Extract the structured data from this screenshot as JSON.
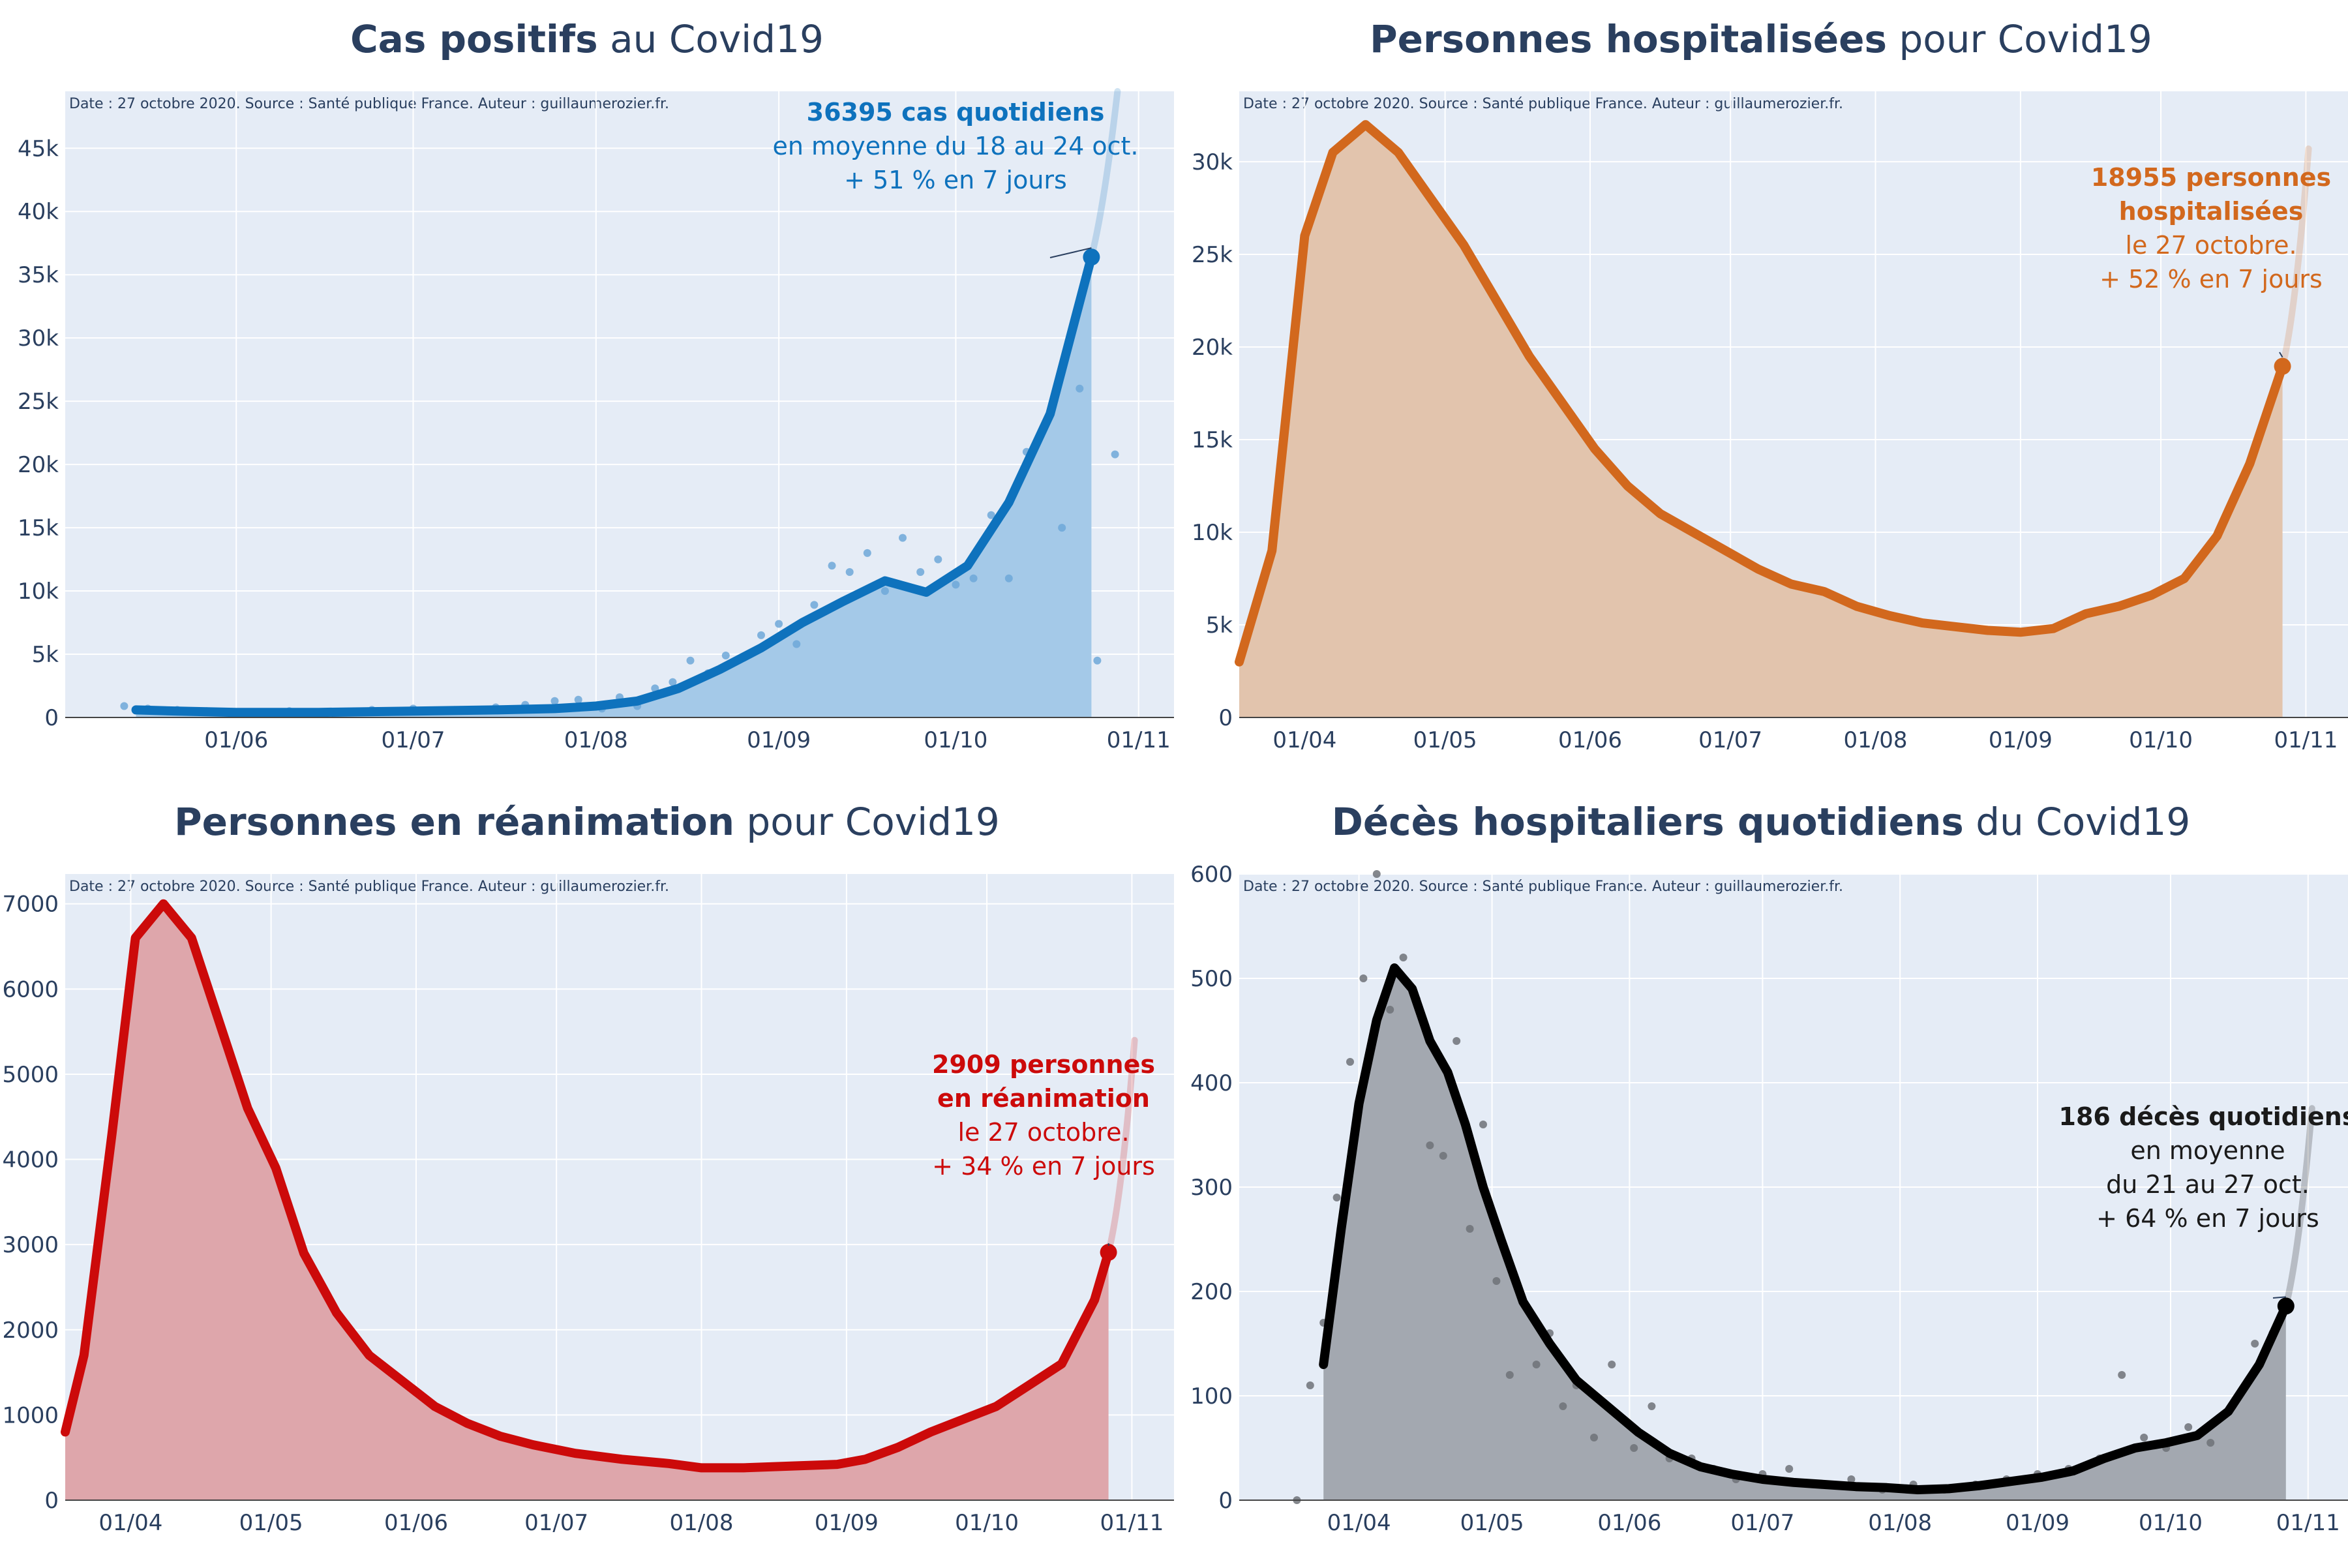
{
  "source_note": "Date : 27 octobre 2020. Source : Santé publique France. Auteur : guillaumerozier.fr.",
  "chart_data": [
    {
      "id": "cases",
      "type": "line",
      "title_bold": "Cas positifs",
      "title_rest": " au Covid19",
      "x_ticks": [
        "2020-06-01",
        "2020-07-01",
        "2020-08-01",
        "2020-09-01",
        "2020-10-01",
        "2020-11-01"
      ],
      "x_tick_labels": [
        "01/06",
        "01/07",
        "01/08",
        "01/09",
        "01/10",
        "01/11"
      ],
      "xlim": [
        "2020-05-03",
        "2020-11-07"
      ],
      "ylim": [
        0,
        49500
      ],
      "y_ticks": [
        0,
        5000,
        10000,
        15000,
        20000,
        25000,
        30000,
        35000,
        40000,
        45000
      ],
      "y_tick_labels": [
        "0",
        "5k",
        "10k",
        "15k",
        "20k",
        "25k",
        "30k",
        "35k",
        "40k",
        "45k"
      ],
      "colors": {
        "line": "#0e72bd",
        "fill": "#a4c9e8",
        "dots": "#6fa8d8"
      },
      "series": [
        {
          "kind": "rolling",
          "x": [
            "2020-05-15",
            "2020-05-22",
            "2020-06-01",
            "2020-06-15",
            "2020-07-01",
            "2020-07-15",
            "2020-07-25",
            "2020-08-01",
            "2020-08-08",
            "2020-08-15",
            "2020-08-22",
            "2020-08-29",
            "2020-09-05",
            "2020-09-12",
            "2020-09-19",
            "2020-09-26",
            "2020-10-03",
            "2020-10-10",
            "2020-10-17",
            "2020-10-24"
          ],
          "y": [
            600,
            500,
            400,
            400,
            500,
            600,
            700,
            900,
            1300,
            2300,
            3800,
            5500,
            7500,
            9200,
            10800,
            9900,
            12000,
            17000,
            24000,
            36395
          ]
        },
        {
          "kind": "daily",
          "x": [
            "2020-05-13",
            "2020-05-17",
            "2020-05-22",
            "2020-05-27",
            "2020-06-03",
            "2020-06-10",
            "2020-06-17",
            "2020-06-24",
            "2020-07-01",
            "2020-07-08",
            "2020-07-15",
            "2020-07-20",
            "2020-07-25",
            "2020-07-29",
            "2020-08-02",
            "2020-08-05",
            "2020-08-08",
            "2020-08-11",
            "2020-08-14",
            "2020-08-17",
            "2020-08-20",
            "2020-08-23",
            "2020-08-26",
            "2020-08-29",
            "2020-09-01",
            "2020-09-04",
            "2020-09-07",
            "2020-09-10",
            "2020-09-13",
            "2020-09-16",
            "2020-09-19",
            "2020-09-22",
            "2020-09-25",
            "2020-09-28",
            "2020-10-01",
            "2020-10-04",
            "2020-10-07",
            "2020-10-10",
            "2020-10-13",
            "2020-10-16",
            "2020-10-19",
            "2020-10-22",
            "2020-10-25",
            "2020-10-28"
          ],
          "y": [
            900,
            700,
            600,
            500,
            400,
            500,
            450,
            600,
            700,
            600,
            800,
            1000,
            1300,
            1400,
            700,
            1600,
            900,
            2300,
            2800,
            4500,
            3500,
            4900,
            4700,
            6500,
            7400,
            5800,
            8900,
            12000,
            11500,
            13000,
            10000,
            14200,
            11500,
            12500,
            10500,
            11000,
            16000,
            11000,
            21000,
            23000,
            15000,
            26000,
            4500,
            20800
          ]
        }
      ],
      "annotation": {
        "at": [
          "2020-10-24",
          36395
        ],
        "line1": "36395 cas quotidiens",
        "line2": "en moyenne du 18 au 24 oct.",
        "line3": "+ 51 % en 7 jours"
      }
    },
    {
      "id": "hosp",
      "type": "area",
      "title_bold": "Personnes hospitalisées",
      "title_rest": " pour Covid19",
      "x_ticks": [
        "2020-04-01",
        "2020-05-01",
        "2020-06-01",
        "2020-07-01",
        "2020-08-01",
        "2020-09-01",
        "2020-10-01",
        "2020-11-01"
      ],
      "x_tick_labels": [
        "01/04",
        "01/05",
        "01/06",
        "01/07",
        "01/08",
        "01/09",
        "01/10",
        "01/11"
      ],
      "xlim": [
        "2020-03-18",
        "2020-11-10"
      ],
      "ylim": [
        0,
        33800
      ],
      "y_ticks": [
        0,
        5000,
        10000,
        15000,
        20000,
        25000,
        30000
      ],
      "y_tick_labels": [
        "0",
        "5k",
        "10k",
        "15k",
        "20k",
        "25k",
        "30k"
      ],
      "colors": {
        "line": "#d2681d",
        "fill": "#e2c4ad"
      },
      "series": [
        {
          "kind": "main",
          "x": [
            "2020-03-18",
            "2020-03-25",
            "2020-04-01",
            "2020-04-07",
            "2020-04-14",
            "2020-04-21",
            "2020-04-28",
            "2020-05-05",
            "2020-05-12",
            "2020-05-19",
            "2020-05-26",
            "2020-06-02",
            "2020-06-09",
            "2020-06-16",
            "2020-06-23",
            "2020-06-30",
            "2020-07-07",
            "2020-07-14",
            "2020-07-21",
            "2020-07-28",
            "2020-08-04",
            "2020-08-11",
            "2020-08-18",
            "2020-08-25",
            "2020-09-01",
            "2020-09-08",
            "2020-09-15",
            "2020-09-22",
            "2020-09-29",
            "2020-10-06",
            "2020-10-13",
            "2020-10-20",
            "2020-10-27"
          ],
          "y": [
            3000,
            9000,
            26000,
            30500,
            32000,
            30500,
            28000,
            25500,
            22500,
            19500,
            17000,
            14500,
            12500,
            11000,
            10000,
            9000,
            8000,
            7200,
            6800,
            6000,
            5500,
            5100,
            4900,
            4700,
            4600,
            4800,
            5600,
            6000,
            6600,
            7500,
            9800,
            13700,
            18955
          ]
        }
      ],
      "annotation": {
        "at": [
          "2020-10-27",
          18955
        ],
        "line1": "18955 personnes",
        "line2": "hospitalisées",
        "line3": "le 27 octobre.",
        "line4": "+ 52 % en 7 jours"
      }
    },
    {
      "id": "icu",
      "type": "area",
      "title_bold": "Personnes en réanimation",
      "title_rest": " pour Covid19",
      "x_ticks": [
        "2020-04-01",
        "2020-05-01",
        "2020-06-01",
        "2020-07-01",
        "2020-08-01",
        "2020-09-01",
        "2020-10-01",
        "2020-11-01"
      ],
      "x_tick_labels": [
        "01/04",
        "01/05",
        "01/06",
        "01/07",
        "01/08",
        "01/09",
        "01/10",
        "01/11"
      ],
      "xlim": [
        "2020-03-18",
        "2020-11-10"
      ],
      "ylim": [
        0,
        7350
      ],
      "y_ticks": [
        0,
        1000,
        2000,
        3000,
        4000,
        5000,
        6000,
        7000
      ],
      "y_tick_labels": [
        "0",
        "1000",
        "2000",
        "3000",
        "4000",
        "5000",
        "6000",
        "7000"
      ],
      "colors": {
        "line": "#cc0a0a",
        "fill": "#dea6ab"
      },
      "series": [
        {
          "kind": "main",
          "x": [
            "2020-03-18",
            "2020-03-22",
            "2020-03-28",
            "2020-04-02",
            "2020-04-08",
            "2020-04-14",
            "2020-04-20",
            "2020-04-26",
            "2020-05-02",
            "2020-05-08",
            "2020-05-15",
            "2020-05-22",
            "2020-05-29",
            "2020-06-05",
            "2020-06-12",
            "2020-06-19",
            "2020-06-26",
            "2020-07-05",
            "2020-07-15",
            "2020-07-25",
            "2020-08-01",
            "2020-08-10",
            "2020-08-20",
            "2020-08-30",
            "2020-09-05",
            "2020-09-12",
            "2020-09-19",
            "2020-09-26",
            "2020-10-03",
            "2020-10-10",
            "2020-10-17",
            "2020-10-24",
            "2020-10-27"
          ],
          "y": [
            800,
            1700,
            4300,
            6600,
            7000,
            6600,
            5600,
            4600,
            3900,
            2900,
            2200,
            1700,
            1400,
            1100,
            900,
            750,
            650,
            550,
            480,
            430,
            380,
            380,
            400,
            420,
            480,
            620,
            800,
            950,
            1100,
            1350,
            1600,
            2350,
            2909
          ]
        }
      ],
      "annotation": {
        "at": [
          "2020-10-27",
          2909
        ],
        "line1": "2909 personnes",
        "line2": "en réanimation",
        "line3": "le 27 octobre.",
        "line4": "+ 34 % en 7 jours"
      }
    },
    {
      "id": "deaths",
      "type": "line",
      "title_bold": "Décès hospitaliers quotidiens",
      "title_rest": " du Covid19",
      "x_ticks": [
        "2020-04-01",
        "2020-05-01",
        "2020-06-01",
        "2020-07-01",
        "2020-08-01",
        "2020-09-01",
        "2020-10-01",
        "2020-11-01"
      ],
      "x_tick_labels": [
        "01/04",
        "01/05",
        "01/06",
        "01/07",
        "01/08",
        "01/09",
        "01/10",
        "01/11"
      ],
      "xlim": [
        "2020-03-05",
        "2020-11-10"
      ],
      "ylim": [
        0,
        600
      ],
      "y_ticks": [
        0,
        100,
        200,
        300,
        400,
        500,
        600
      ],
      "y_tick_labels": [
        "0",
        "100",
        "200",
        "300",
        "400",
        "500",
        "600"
      ],
      "colors": {
        "line": "#000000",
        "fill": "#a3a8b0",
        "dots": "#6e7278"
      },
      "series": [
        {
          "kind": "rolling",
          "x": [
            "2020-03-24",
            "2020-03-28",
            "2020-04-01",
            "2020-04-05",
            "2020-04-09",
            "2020-04-13",
            "2020-04-17",
            "2020-04-21",
            "2020-04-25",
            "2020-04-29",
            "2020-05-03",
            "2020-05-08",
            "2020-05-14",
            "2020-05-20",
            "2020-05-27",
            "2020-06-03",
            "2020-06-10",
            "2020-06-17",
            "2020-06-24",
            "2020-07-01",
            "2020-07-08",
            "2020-07-15",
            "2020-07-22",
            "2020-07-29",
            "2020-08-05",
            "2020-08-12",
            "2020-08-19",
            "2020-08-26",
            "2020-09-02",
            "2020-09-09",
            "2020-09-16",
            "2020-09-23",
            "2020-09-30",
            "2020-10-07",
            "2020-10-14",
            "2020-10-21",
            "2020-10-27"
          ],
          "y": [
            130,
            260,
            380,
            460,
            510,
            490,
            440,
            410,
            360,
            300,
            250,
            190,
            150,
            115,
            90,
            65,
            45,
            32,
            25,
            20,
            17,
            15,
            13,
            12,
            10,
            11,
            14,
            18,
            22,
            28,
            40,
            50,
            55,
            62,
            85,
            130,
            186
          ]
        },
        {
          "kind": "daily",
          "x": [
            "2020-03-18",
            "2020-03-21",
            "2020-03-24",
            "2020-03-27",
            "2020-03-30",
            "2020-04-02",
            "2020-04-05",
            "2020-04-08",
            "2020-04-11",
            "2020-04-14",
            "2020-04-17",
            "2020-04-20",
            "2020-04-23",
            "2020-04-26",
            "2020-04-29",
            "2020-05-02",
            "2020-05-05",
            "2020-05-08",
            "2020-05-11",
            "2020-05-14",
            "2020-05-17",
            "2020-05-20",
            "2020-05-24",
            "2020-05-28",
            "2020-06-02",
            "2020-06-06",
            "2020-06-10",
            "2020-06-15",
            "2020-06-20",
            "2020-06-25",
            "2020-07-01",
            "2020-07-07",
            "2020-07-14",
            "2020-07-21",
            "2020-07-28",
            "2020-08-04",
            "2020-08-11",
            "2020-08-18",
            "2020-08-25",
            "2020-09-01",
            "2020-09-08",
            "2020-09-15",
            "2020-09-20",
            "2020-09-25",
            "2020-09-30",
            "2020-10-05",
            "2020-10-10",
            "2020-10-15",
            "2020-10-20",
            "2020-10-24",
            "2020-10-27"
          ],
          "y": [
            0,
            110,
            170,
            290,
            420,
            500,
            600,
            470,
            520,
            480,
            340,
            330,
            440,
            260,
            360,
            210,
            120,
            190,
            130,
            160,
            90,
            110,
            60,
            130,
            50,
            90,
            40,
            40,
            30,
            20,
            25,
            30,
            15,
            20,
            10,
            15,
            10,
            15,
            20,
            25,
            30,
            40,
            120,
            60,
            50,
            70,
            55,
            90,
            150,
            160,
            190
          ]
        }
      ],
      "annotation": {
        "at": [
          "2020-10-27",
          186
        ],
        "line1": "186 décès quotidiens",
        "line2": "en moyenne",
        "line3": "du 21 au 27 oct.",
        "line4": "+ 64 % en 7 jours"
      }
    }
  ]
}
